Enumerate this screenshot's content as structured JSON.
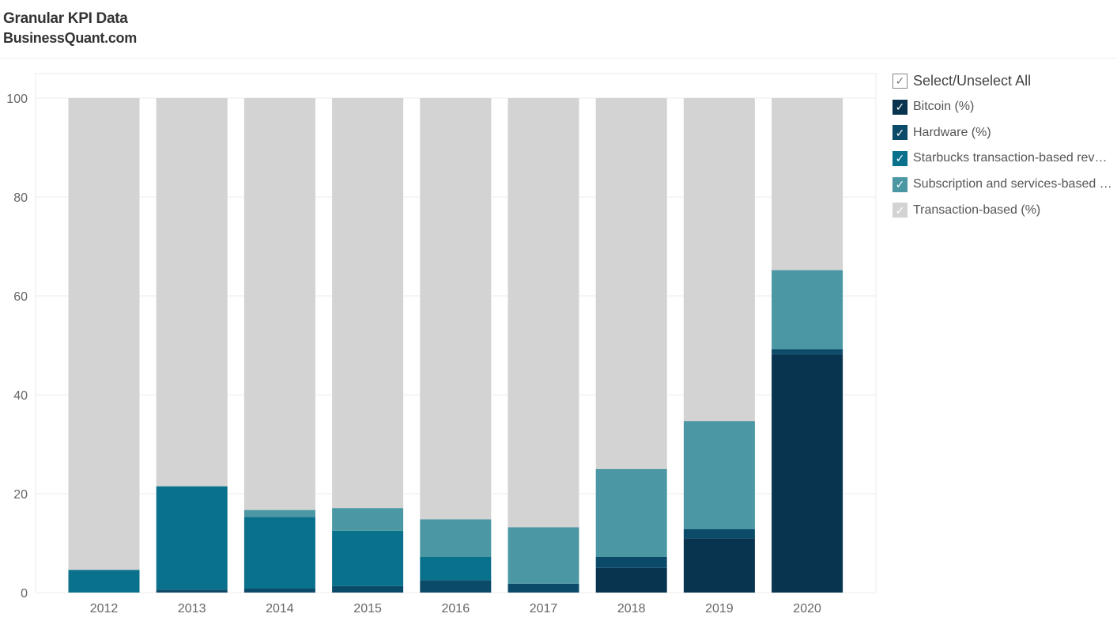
{
  "header": {
    "title": "Granular KPI Data",
    "subtitle": "BusinessQuant.com"
  },
  "legend": {
    "select_all_label": "Select/Unselect All",
    "check_icon": "✓",
    "items": [
      {
        "label": "Bitcoin (%)",
        "color": "#08344f"
      },
      {
        "label": "Hardware (%)",
        "color": "#0b4a68"
      },
      {
        "label": "Starbucks transaction-based revenue (%)",
        "color": "#0a718d"
      },
      {
        "label": "Subscription and services-based revenue (%)",
        "color": "#4b97a4"
      },
      {
        "label": "Transaction-based (%)",
        "color": "#d3d3d3"
      }
    ]
  },
  "chart_data": {
    "type": "bar",
    "stacked": true,
    "categories": [
      "2012",
      "2013",
      "2014",
      "2015",
      "2016",
      "2017",
      "2018",
      "2019",
      "2020"
    ],
    "ylim": [
      0,
      105
    ],
    "yticks": [
      0,
      20,
      40,
      60,
      80,
      100
    ],
    "grid": true,
    "legend_position": "right",
    "series": [
      {
        "name": "Bitcoin (%)",
        "color": "#08344f",
        "values": [
          0,
          0,
          0,
          0,
          0,
          0,
          5.0,
          11.0,
          48.2
        ]
      },
      {
        "name": "Hardware (%)",
        "color": "#0b4a68",
        "values": [
          0,
          0.6,
          0.8,
          1.3,
          2.5,
          1.8,
          2.2,
          1.8,
          1.0
        ]
      },
      {
        "name": "Starbucks transaction-based revenue (%)",
        "color": "#0a718d",
        "values": [
          4.6,
          20.9,
          14.5,
          11.2,
          4.7,
          0,
          0,
          0,
          0
        ]
      },
      {
        "name": "Subscription and services-based revenue (%)",
        "color": "#4b97a4",
        "values": [
          0,
          0,
          1.4,
          4.6,
          7.6,
          11.4,
          17.8,
          21.9,
          16.0
        ]
      },
      {
        "name": "Transaction-based (%)",
        "color": "#d3d3d3",
        "values": [
          95.4,
          78.5,
          83.3,
          82.9,
          85.2,
          86.8,
          75.0,
          65.3,
          34.8
        ]
      }
    ]
  }
}
